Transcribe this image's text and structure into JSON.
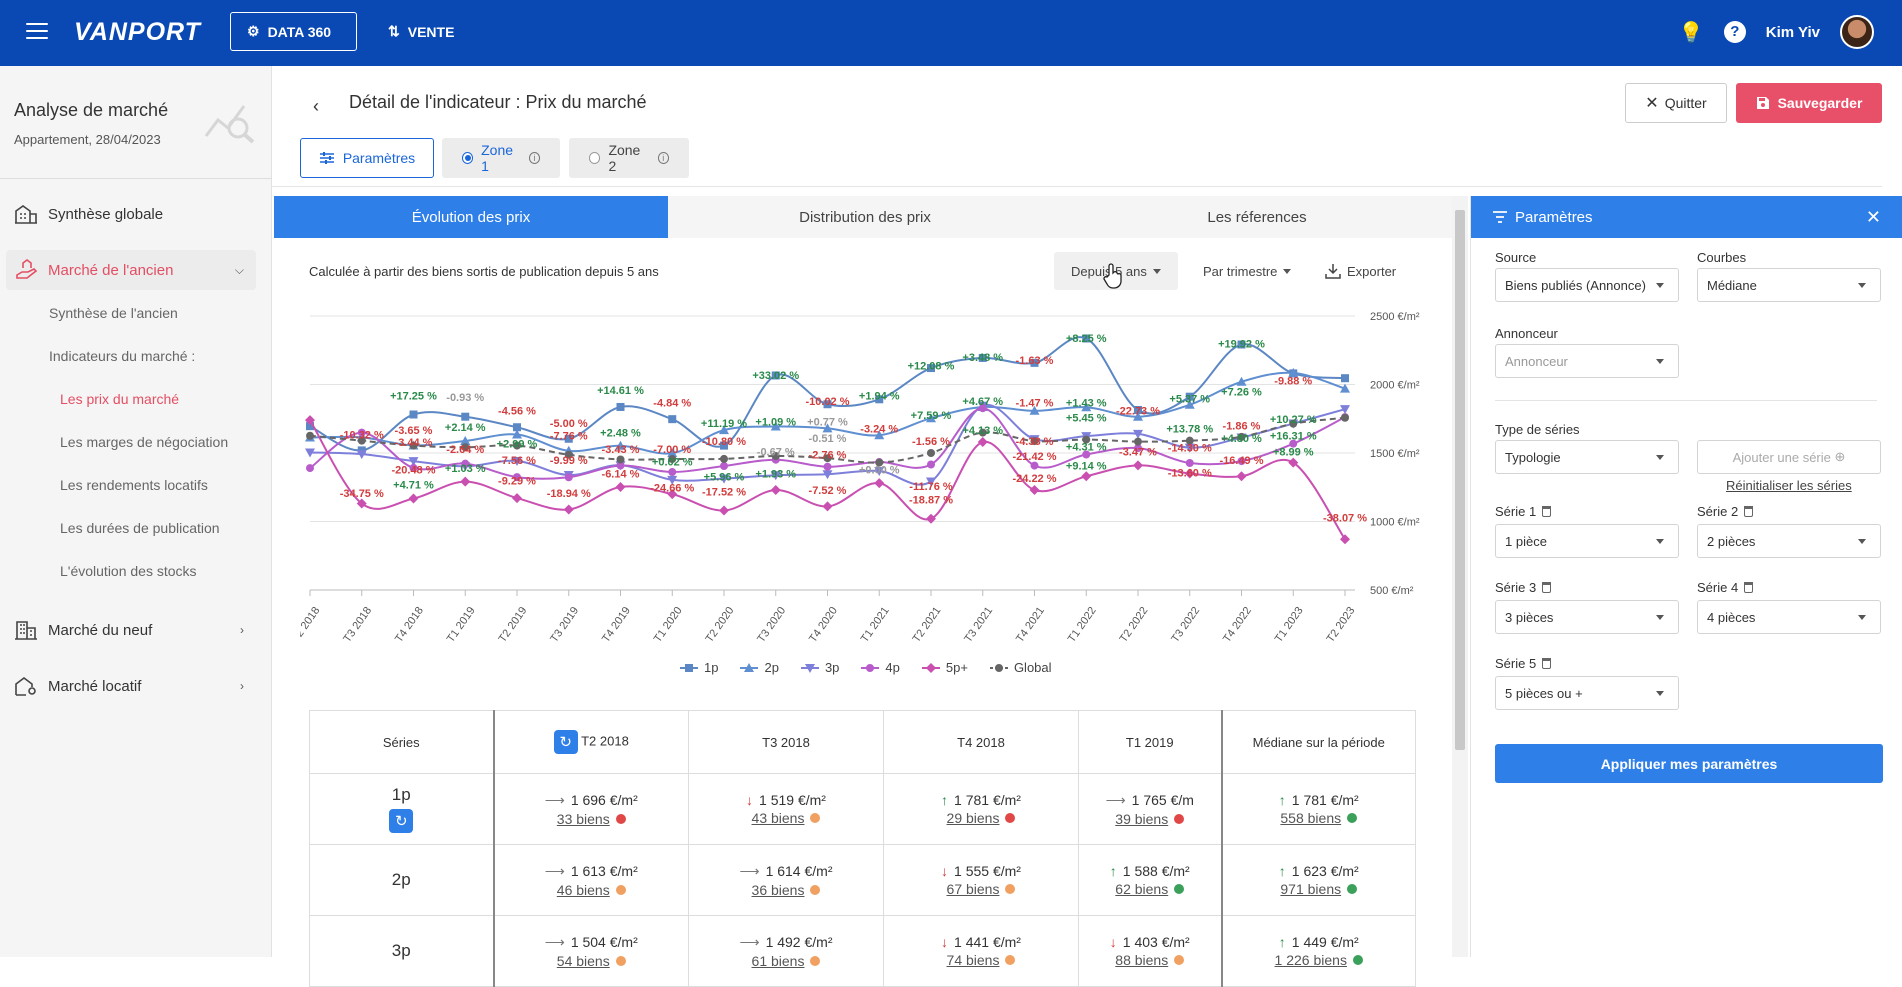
{
  "topbar": {
    "logo": "VANPORT",
    "data360_label": "DATA 360",
    "vente_label": "VENTE",
    "user_name": "Kim Yiv"
  },
  "sidebar": {
    "title": "Analyse de marché",
    "subtitle": "Appartement, 28/04/2023",
    "items": [
      {
        "label": "Synthèse globale"
      },
      {
        "label": "Marché de l'ancien"
      },
      {
        "label": "Marché du neuf"
      },
      {
        "label": "Marché locatif"
      }
    ],
    "sublinks": {
      "synthese_ancien": "Synthèse de l'ancien",
      "indicateurs": "Indicateurs du marché :",
      "prix": "Les prix du marché",
      "marges": "Les marges de négociation",
      "rendements": "Les rendements locatifs",
      "durees": "Les durées de publication",
      "stocks": "L'évolution des stocks"
    }
  },
  "header": {
    "title": "Détail de l'indicateur : Prix du marché",
    "quit_label": "Quitter",
    "save_label": "Sauvegarder",
    "params_label": "Paramètres",
    "zone1_label": "Zone 1",
    "zone2_label": "Zone 2"
  },
  "tabs": {
    "evolution": "Évolution des prix",
    "distribution": "Distribution des prix",
    "references": "Les réferences"
  },
  "controls": {
    "calc_text": "Calculée à partir des biens sortis de publication depuis 5 ans",
    "period": "Depuis 5 ans",
    "granularity": "Par trimestre",
    "export": "Exporter"
  },
  "chart_data": {
    "type": "line",
    "x": [
      "T2 2018",
      "T3 2018",
      "T4 2018",
      "T1 2019",
      "T2 2019",
      "T3 2019",
      "T4 2019",
      "T1 2020",
      "T2 2020",
      "T3 2020",
      "T4 2020",
      "T1 2021",
      "T2 2021",
      "T3 2021",
      "T4 2021",
      "T1 2022",
      "T2 2022",
      "T3 2022",
      "T4 2022",
      "T1 2023",
      "T2 2023"
    ],
    "yticks": [
      "2500 €/m²",
      "2000 €/m²",
      "1500 €/m²",
      "1000 €/m²",
      "500 €/m²"
    ],
    "ylim": [
      500,
      2500
    ],
    "series": [
      {
        "name": "1p",
        "color": "#5b87c4",
        "marker": "square",
        "values": [
          1696,
          1519,
          1781,
          1765,
          1688,
          1604,
          1836,
          1747,
          1554,
          2066,
          1856,
          1892,
          2120,
          2194,
          2158,
          2336,
          1814,
          1911,
          2292,
          2081,
          2046
        ]
      },
      {
        "name": "2p",
        "color": "#5f8fd1",
        "marker": "triangle",
        "values": [
          1613,
          1614,
          1555,
          1588,
          1635,
          1516,
          1553,
          1499,
          1667,
          1693,
          1680,
          1630,
          1754,
          1836,
          1808,
          1834,
          1765,
          1852,
          2020,
          2085,
          1970
        ]
      },
      {
        "name": "3p",
        "color": "#7d7fdb",
        "marker": "triangle-down",
        "values": [
          1504,
          1492,
          1441,
          1403,
          1442,
          1339,
          1411,
          1304,
          1313,
          1338,
          1345,
          1369,
          1292,
          1845,
          1601,
          1623,
          1640,
          1539,
          1613,
          1715,
          1820
        ]
      },
      {
        "name": "4p",
        "color": "#b85ccc",
        "marker": "circle",
        "values": [
          1390,
          1649,
          1391,
          1422,
          1324,
          1323,
          1408,
          1361,
          1405,
          1451,
          1400,
          1434,
          1416,
          1827,
          1408,
          1489,
          1536,
          1427,
          1441,
          1568,
          1762
        ]
      },
      {
        "name": "5p+",
        "color": "#c94fb0",
        "marker": "diamond",
        "values": [
          1740,
          1131,
          1168,
          1291,
          1171,
          1088,
          1252,
          1200,
          1080,
          1230,
          1110,
          1280,
          1020,
          1580,
          1230,
          1330,
          1410,
          1350,
          1330,
          1430,
          870
        ]
      },
      {
        "name": "Global",
        "color": "#666666",
        "marker": "circle",
        "dashed": true,
        "values": [
          1626,
          1590,
          1554,
          1542,
          1554,
          1487,
          1453,
          1456,
          1457,
          1478,
          1462,
          1430,
          1500,
          1649,
          1587,
          1598,
          1583,
          1590,
          1618,
          1714,
          1757
        ]
      }
    ],
    "annotations": [
      {
        "x": "T3 2018",
        "text": "-10.32 %",
        "color": "#d23c3c",
        "v": 1605
      },
      {
        "x": "T3 2018",
        "text": "-34.75 %",
        "color": "#d23c3c",
        "v": 1180
      },
      {
        "x": "T4 2018",
        "text": "+17.25 %",
        "color": "#2a8a4a",
        "v": 1890
      },
      {
        "x": "T4 2018",
        "text": "-3.65 %",
        "color": "#d23c3c",
        "v": 1640
      },
      {
        "x": "T4 2018",
        "text": "-3.44 %",
        "color": "#d23c3c",
        "v": 1550
      },
      {
        "x": "T4 2018",
        "text": "-20.48 %",
        "color": "#d23c3c",
        "v": 1350
      },
      {
        "x": "T4 2018",
        "text": "+4.71 %",
        "color": "#2a8a4a",
        "v": 1240
      },
      {
        "x": "T1 2019",
        "text": "-0.93 %",
        "color": "#999999",
        "v": 1880
      },
      {
        "x": "T1 2019",
        "text": "+2.14 %",
        "color": "#2a8a4a",
        "v": 1660
      },
      {
        "x": "T1 2019",
        "text": "-2.64 %",
        "color": "#d23c3c",
        "v": 1500
      },
      {
        "x": "T1 2019",
        "text": "+1.03 %",
        "color": "#2a8a4a",
        "v": 1360
      },
      {
        "x": "T2 2019",
        "text": "-4.56 %",
        "color": "#d23c3c",
        "v": 1780
      },
      {
        "x": "T2 2019",
        "text": "+2.99 %",
        "color": "#2a8a4a",
        "v": 1540
      },
      {
        "x": "T2 2019",
        "text": "-7.56 %",
        "color": "#d23c3c",
        "v": 1420
      },
      {
        "x": "T2 2019",
        "text": "-9.29 %",
        "color": "#d23c3c",
        "v": 1270
      },
      {
        "x": "T3 2019",
        "text": "-5.00 %",
        "color": "#d23c3c",
        "v": 1690
      },
      {
        "x": "T3 2019",
        "text": "-7.76 %",
        "color": "#d23c3c",
        "v": 1600
      },
      {
        "x": "T3 2019",
        "text": "-9.99 %",
        "color": "#d23c3c",
        "v": 1420
      },
      {
        "x": "T3 2019",
        "text": "-18.94 %",
        "color": "#d23c3c",
        "v": 1180
      },
      {
        "x": "T4 2019",
        "text": "+14.61 %",
        "color": "#2a8a4a",
        "v": 1930
      },
      {
        "x": "T4 2019",
        "text": "+2.48 %",
        "color": "#2a8a4a",
        "v": 1620
      },
      {
        "x": "T4 2019",
        "text": "-3.43 %",
        "color": "#d23c3c",
        "v": 1500
      },
      {
        "x": "T4 2019",
        "text": "-6.14 %",
        "color": "#d23c3c",
        "v": 1320
      },
      {
        "x": "T1 2020",
        "text": "-4.84 %",
        "color": "#d23c3c",
        "v": 1840
      },
      {
        "x": "T1 2020",
        "text": "-7.00 %",
        "color": "#d23c3c",
        "v": 1500
      },
      {
        "x": "T1 2020",
        "text": "+0.02 %",
        "color": "#2a8a4a",
        "v": 1410
      },
      {
        "x": "T1 2020",
        "text": "-24.66 %",
        "color": "#d23c3c",
        "v": 1220
      },
      {
        "x": "T2 2020",
        "text": "+11.19 %",
        "color": "#2a8a4a",
        "v": 1690
      },
      {
        "x": "T2 2020",
        "text": "-10.80 %",
        "color": "#d23c3c",
        "v": 1560
      },
      {
        "x": "T2 2020",
        "text": "+5.96 %",
        "color": "#2a8a4a",
        "v": 1300
      },
      {
        "x": "T2 2020",
        "text": "-17.52 %",
        "color": "#d23c3c",
        "v": 1190
      },
      {
        "x": "T3 2020",
        "text": "+33.02 %",
        "color": "#2a8a4a",
        "v": 2040
      },
      {
        "x": "T3 2020",
        "text": "+1.09 %",
        "color": "#2a8a4a",
        "v": 1700
      },
      {
        "x": "T3 2020",
        "text": "-0.67 %",
        "color": "#999999",
        "v": 1480
      },
      {
        "x": "T3 2020",
        "text": "+1.93 %",
        "color": "#2a8a4a",
        "v": 1320
      },
      {
        "x": "T4 2020",
        "text": "-10.02 %",
        "color": "#d23c3c",
        "v": 1850
      },
      {
        "x": "T4 2020",
        "text": "+0.77 %",
        "color": "#999999",
        "v": 1700
      },
      {
        "x": "T4 2020",
        "text": "-0.51 %",
        "color": "#999999",
        "v": 1580
      },
      {
        "x": "T4 2020",
        "text": "-2.76 %",
        "color": "#d23c3c",
        "v": 1460
      },
      {
        "x": "T4 2020",
        "text": "-7.52 %",
        "color": "#d23c3c",
        "v": 1200
      },
      {
        "x": "T1 2021",
        "text": "+1.94 %",
        "color": "#2a8a4a",
        "v": 1890
      },
      {
        "x": "T1 2021",
        "text": "-3.24 %",
        "color": "#d23c3c",
        "v": 1650
      },
      {
        "x": "T1 2021",
        "text": "+0.00 %",
        "color": "#999999",
        "v": 1350
      },
      {
        "x": "T2 2021",
        "text": "+12.08 %",
        "color": "#2a8a4a",
        "v": 2110
      },
      {
        "x": "T2 2021",
        "text": "+7.59 %",
        "color": "#2a8a4a",
        "v": 1750
      },
      {
        "x": "T2 2021",
        "text": "-1.56 %",
        "color": "#d23c3c",
        "v": 1560
      },
      {
        "x": "T2 2021",
        "text": "-11.76 %",
        "color": "#d23c3c",
        "v": 1230
      },
      {
        "x": "T2 2021",
        "text": "-18.87 %",
        "color": "#d23c3c",
        "v": 1130
      },
      {
        "x": "T3 2021",
        "text": "+3.48 %",
        "color": "#2a8a4a",
        "v": 2170
      },
      {
        "x": "T3 2021",
        "text": "+4.67 %",
        "color": "#2a8a4a",
        "v": 1850
      },
      {
        "x": "T3 2021",
        "text": "+4.13 %",
        "color": "#2a8a4a",
        "v": 1640
      },
      {
        "x": "T4 2021",
        "text": "-1.63 %",
        "color": "#d23c3c",
        "v": 2150
      },
      {
        "x": "T4 2021",
        "text": "-1.47 %",
        "color": "#d23c3c",
        "v": 1840
      },
      {
        "x": "T4 2021",
        "text": "-4.38 %",
        "color": "#d23c3c",
        "v": 1560
      },
      {
        "x": "T4 2021",
        "text": "-21.42 %",
        "color": "#d23c3c",
        "v": 1450
      },
      {
        "x": "T4 2021",
        "text": "-24.22 %",
        "color": "#d23c3c",
        "v": 1290
      },
      {
        "x": "T1 2022",
        "text": "+8.25 %",
        "color": "#2a8a4a",
        "v": 2310
      },
      {
        "x": "T1 2022",
        "text": "+1.43 %",
        "color": "#2a8a4a",
        "v": 1840
      },
      {
        "x": "T1 2022",
        "text": "+5.45 %",
        "color": "#2a8a4a",
        "v": 1730
      },
      {
        "x": "T1 2022",
        "text": "+4.31 %",
        "color": "#2a8a4a",
        "v": 1520
      },
      {
        "x": "T1 2022",
        "text": "+9.14 %",
        "color": "#2a8a4a",
        "v": 1380
      },
      {
        "x": "T2 2022",
        "text": "-22.73 %",
        "color": "#d23c3c",
        "v": 1780
      },
      {
        "x": "T2 2022",
        "text": "-3.47 %",
        "color": "#d23c3c",
        "v": 1480
      },
      {
        "x": "T3 2022",
        "text": "+5.37 %",
        "color": "#2a8a4a",
        "v": 1870
      },
      {
        "x": "T3 2022",
        "text": "+13.78 %",
        "color": "#2a8a4a",
        "v": 1650
      },
      {
        "x": "T3 2022",
        "text": "-14.30 %",
        "color": "#d23c3c",
        "v": 1510
      },
      {
        "x": "T3 2022",
        "text": "-13.60 %",
        "color": "#d23c3c",
        "v": 1330
      },
      {
        "x": "T4 2022",
        "text": "+19.92 %",
        "color": "#2a8a4a",
        "v": 2270
      },
      {
        "x": "T4 2022",
        "text": "+7.26 %",
        "color": "#2a8a4a",
        "v": 1920
      },
      {
        "x": "T4 2022",
        "text": "-1.86 %",
        "color": "#d23c3c",
        "v": 1670
      },
      {
        "x": "T4 2022",
        "text": "+4.80 %",
        "color": "#2a8a4a",
        "v": 1580
      },
      {
        "x": "T4 2022",
        "text": "-16.49 %",
        "color": "#d23c3c",
        "v": 1420
      },
      {
        "x": "T1 2023",
        "text": "-9.88 %",
        "color": "#d23c3c",
        "v": 2000
      },
      {
        "x": "T1 2023",
        "text": "+10.27 %",
        "color": "#2a8a4a",
        "v": 1720
      },
      {
        "x": "T1 2023",
        "text": "+16.31 %",
        "color": "#2a8a4a",
        "v": 1600
      },
      {
        "x": "T1 2023",
        "text": "+8.99 %",
        "color": "#2a8a4a",
        "v": 1480
      },
      {
        "x": "T2 2023",
        "text": "-38.07 %",
        "color": "#d23c3c",
        "v": 1000
      }
    ],
    "legend_position": "bottom",
    "grid": true
  },
  "table": {
    "headers": [
      "Séries",
      "T2 2018",
      "T3 2018",
      "T4 2018",
      "T1 2019",
      "Médiane sur la période"
    ],
    "rows": [
      {
        "name": "1p",
        "cells": [
          {
            "arrow": "right",
            "price": "1 696 €/m²",
            "count": "33 biens",
            "dot": "#e04848"
          },
          {
            "arrow": "down",
            "price": "1 519 €/m²",
            "count": "43 biens",
            "dot": "#f0a060"
          },
          {
            "arrow": "up",
            "price": "1 781 €/m²",
            "count": "29 biens",
            "dot": "#e04848"
          },
          {
            "arrow": "right",
            "price": "1 765 €/m",
            "count": "39 biens",
            "dot": "#e04848"
          },
          {
            "arrow": "up",
            "price": "1 781 €/m²",
            "count": "558 biens",
            "dot": "#3aa05a"
          }
        ]
      },
      {
        "name": "2p",
        "cells": [
          {
            "arrow": "right",
            "price": "1 613 €/m²",
            "count": "46 biens",
            "dot": "#f0a060"
          },
          {
            "arrow": "right",
            "price": "1 614 €/m²",
            "count": "36 biens",
            "dot": "#f0a060"
          },
          {
            "arrow": "down",
            "price": "1 555 €/m²",
            "count": "67 biens",
            "dot": "#f0a060"
          },
          {
            "arrow": "up",
            "price": "1 588 €/m²",
            "count": "62 biens",
            "dot": "#3aa05a"
          },
          {
            "arrow": "up",
            "price": "1 623 €/m²",
            "count": "971 biens",
            "dot": "#3aa05a"
          }
        ]
      },
      {
        "name": "3p",
        "cells": [
          {
            "arrow": "right",
            "price": "1 504 €/m²",
            "count": "54 biens",
            "dot": "#f0a060"
          },
          {
            "arrow": "right",
            "price": "1 492 €/m²",
            "count": "61 biens",
            "dot": "#f0a060"
          },
          {
            "arrow": "down",
            "price": "1 441 €/m²",
            "count": "74 biens",
            "dot": "#f0a060"
          },
          {
            "arrow": "down",
            "price": "1 403 €/m²",
            "count": "88 biens",
            "dot": "#f0a060"
          },
          {
            "arrow": "up",
            "price": "1 449 €/m²",
            "count": "1 226 biens",
            "dot": "#3aa05a"
          }
        ]
      }
    ]
  },
  "panel": {
    "title": "Paramètres",
    "source_label": "Source",
    "source_value": "Biens publiés (Annonce)",
    "courbes_label": "Courbes",
    "courbes_value": "Médiane",
    "annonceur_label": "Annonceur",
    "annonceur_placeholder": "Annonceur",
    "type_label": "Type de séries",
    "type_value": "Typologie",
    "add_series": "Ajouter une série",
    "reset": "Réinitialiser les séries",
    "series": [
      {
        "label": "Série 1",
        "value": "1 pièce"
      },
      {
        "label": "Série 2",
        "value": "2 pièces"
      },
      {
        "label": "Série 3",
        "value": "3 pièces"
      },
      {
        "label": "Série 4",
        "value": "4 pièces"
      },
      {
        "label": "Série 5",
        "value": "5 pièces ou +"
      }
    ],
    "apply": "Appliquer mes paramètres"
  }
}
